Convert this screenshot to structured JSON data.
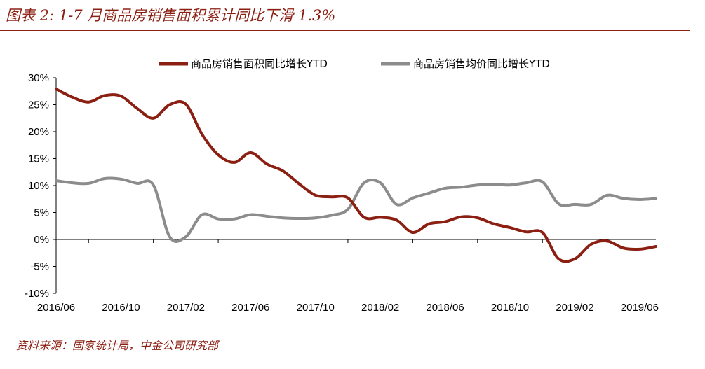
{
  "header": {
    "title": "图表 2: 1-7 月商品房销售面积累计同比下滑 1.3%"
  },
  "footer": {
    "source": "资料来源：国家统计局，中金公司研究部"
  },
  "colors": {
    "accent": "#8b1f12",
    "series1": "#8b1f12",
    "series2": "#8c8c8c"
  },
  "chart_data": {
    "type": "line",
    "title": "",
    "xlabel": "",
    "ylabel": "",
    "ylim": [
      -10,
      30
    ],
    "y_ticks": [
      -10,
      -5,
      0,
      5,
      10,
      15,
      20,
      25,
      30
    ],
    "y_tick_labels": [
      "-10%",
      "-5%",
      "0%",
      "5%",
      "10%",
      "15%",
      "20%",
      "25%",
      "30%"
    ],
    "x_tick_labels": [
      "2016/06",
      "2016/10",
      "2017/02",
      "2017/06",
      "2017/10",
      "2018/02",
      "2018/06",
      "2018/10",
      "2019/02",
      "2019/06"
    ],
    "grid": false,
    "legend_position": "top",
    "x": [
      "2016/06",
      "2016/07",
      "2016/08",
      "2016/09",
      "2016/10",
      "2016/11",
      "2016/12",
      "2017/01",
      "2017/02",
      "2017/03",
      "2017/04",
      "2017/05",
      "2017/06",
      "2017/07",
      "2017/08",
      "2017/09",
      "2017/10",
      "2017/11",
      "2017/12",
      "2018/01",
      "2018/02",
      "2018/03",
      "2018/04",
      "2018/05",
      "2018/06",
      "2018/07",
      "2018/08",
      "2018/09",
      "2018/10",
      "2018/11",
      "2018/12",
      "2019/01",
      "2019/02",
      "2019/03",
      "2019/04",
      "2019/05",
      "2019/06",
      "2019/07"
    ],
    "series": [
      {
        "name": "商品房销售面积同比增长YTD",
        "color": "#8b1f12",
        "values": [
          27.9,
          26.4,
          25.5,
          26.7,
          26.6,
          24.3,
          22.5,
          25.0,
          25.1,
          19.5,
          15.7,
          14.3,
          16.1,
          14.0,
          12.7,
          10.3,
          8.2,
          7.9,
          7.7,
          4.1,
          4.1,
          3.6,
          1.3,
          2.9,
          3.3,
          4.2,
          4.0,
          2.9,
          2.2,
          1.4,
          1.3,
          -3.6,
          -3.6,
          -0.9,
          -0.3,
          -1.6,
          -1.8,
          -1.3
        ]
      },
      {
        "name": "商品房销售均价同比增长YTD",
        "color": "#8c8c8c",
        "values": [
          10.9,
          10.5,
          10.4,
          11.3,
          11.2,
          10.4,
          10.1,
          0.5,
          0.5,
          4.6,
          3.8,
          3.8,
          4.6,
          4.3,
          4.0,
          3.9,
          4.0,
          4.5,
          5.6,
          10.5,
          10.5,
          6.5,
          7.7,
          8.6,
          9.5,
          9.7,
          10.1,
          10.2,
          10.1,
          10.5,
          10.7,
          6.6,
          6.5,
          6.5,
          8.2,
          7.6,
          7.4,
          7.6
        ]
      }
    ]
  }
}
